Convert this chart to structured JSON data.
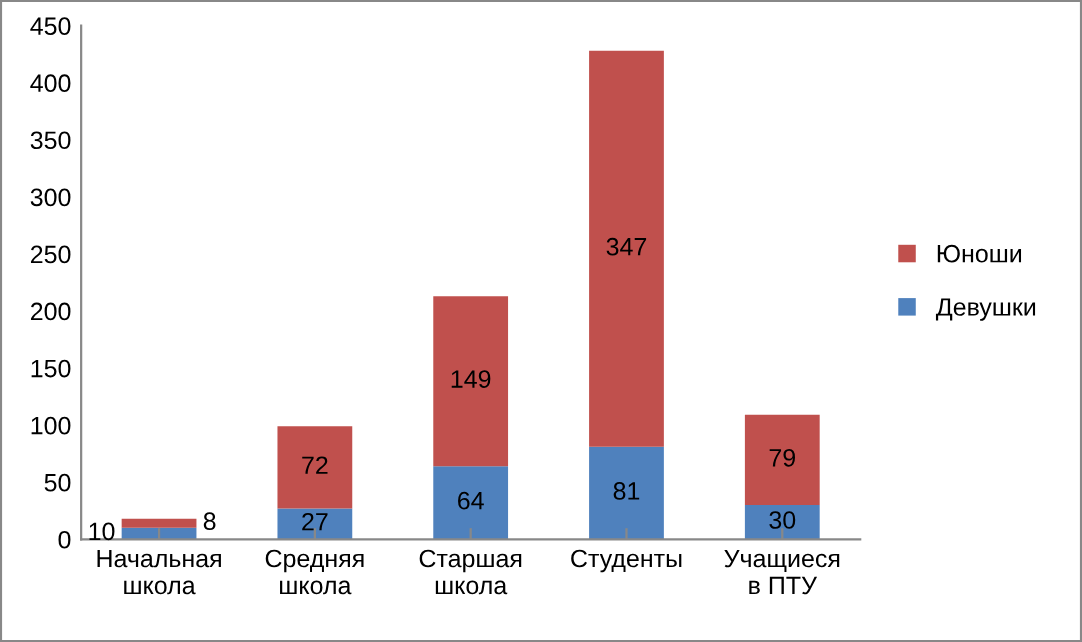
{
  "chart_data": {
    "type": "bar",
    "stacked": true,
    "categories": [
      "Начальная школа",
      "Средняя школа",
      "Старшая школа",
      "Студенты",
      "Учащиеся в ПТУ"
    ],
    "series": [
      {
        "name": "Девушки",
        "color": "#4f81bd",
        "values": [
          10,
          27,
          64,
          81,
          30
        ]
      },
      {
        "name": "Юноши",
        "color": "#c0504d",
        "values": [
          8,
          72,
          149,
          347,
          79
        ]
      }
    ],
    "ylim": [
      0,
      450
    ],
    "yticks": [
      0,
      50,
      100,
      150,
      200,
      250,
      300,
      350,
      400,
      450
    ],
    "grid": false,
    "legend": "right",
    "data_labels": true
  }
}
